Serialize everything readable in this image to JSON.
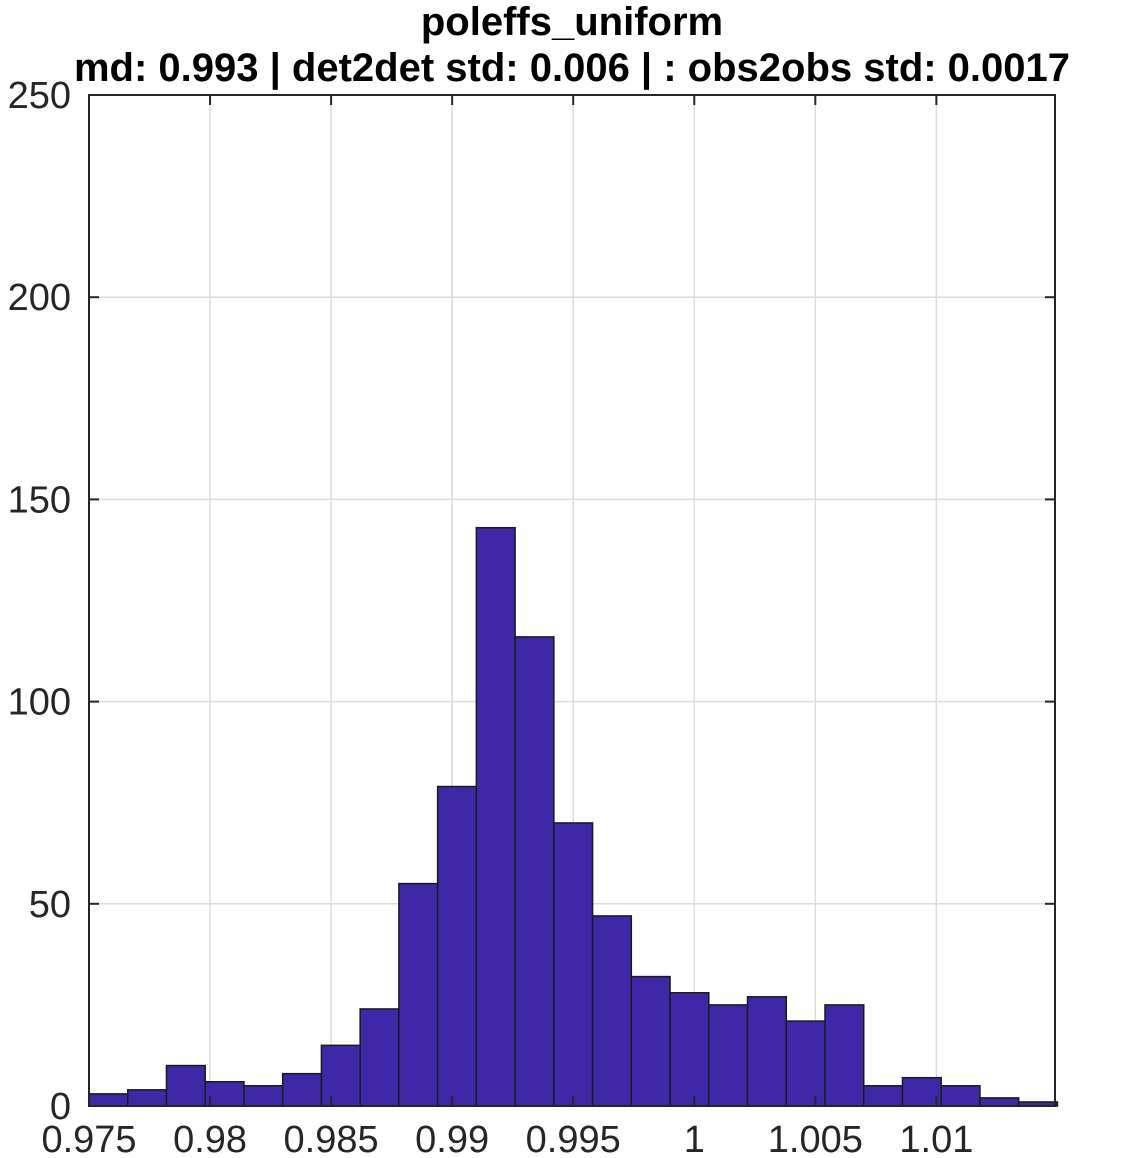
{
  "chart_data": {
    "type": "bar",
    "title": "poleffs_uniform",
    "subtitle": "md: 0.993 | det2det std: 0.006 | : obs2obs std: 0.0017",
    "xlabel": "",
    "ylabel": "",
    "xlim": [
      0.975,
      1.0149
    ],
    "ylim": [
      0,
      250
    ],
    "xticks": [
      "0.975",
      "0.98",
      "0.985",
      "0.99",
      "0.995",
      "1",
      "1.005",
      "1.01"
    ],
    "yticks": [
      "0",
      "50",
      "100",
      "150",
      "200",
      "250"
    ],
    "grid": true,
    "bar_color": "#3f28a8",
    "bin_start": 0.975,
    "bin_width": 0.0016,
    "values": [
      3,
      4,
      10,
      6,
      5,
      8,
      15,
      24,
      55,
      79,
      143,
      116,
      70,
      47,
      32,
      28,
      25,
      27,
      21,
      25,
      5,
      7,
      5,
      2,
      1
    ]
  }
}
